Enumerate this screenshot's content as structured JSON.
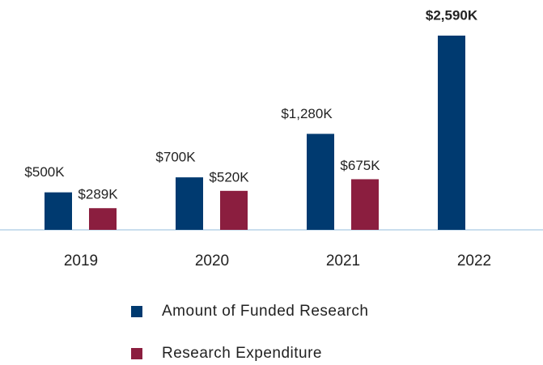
{
  "chart_data": {
    "type": "bar",
    "categories": [
      "2019",
      "2020",
      "2021",
      "2022"
    ],
    "series": [
      {
        "name": "Amount of Funded Research",
        "color": "#003a70",
        "values": [
          500,
          700,
          1280,
          2590
        ],
        "value_labels": [
          "$500K",
          "$700K",
          "$1,280K",
          "$2,590K"
        ]
      },
      {
        "name": "Research Expenditure",
        "color": "#8b1e3f",
        "values": [
          289,
          520,
          675,
          null
        ],
        "value_labels": [
          "$289K",
          "$520K",
          "$675K",
          null
        ]
      }
    ]
  }
}
